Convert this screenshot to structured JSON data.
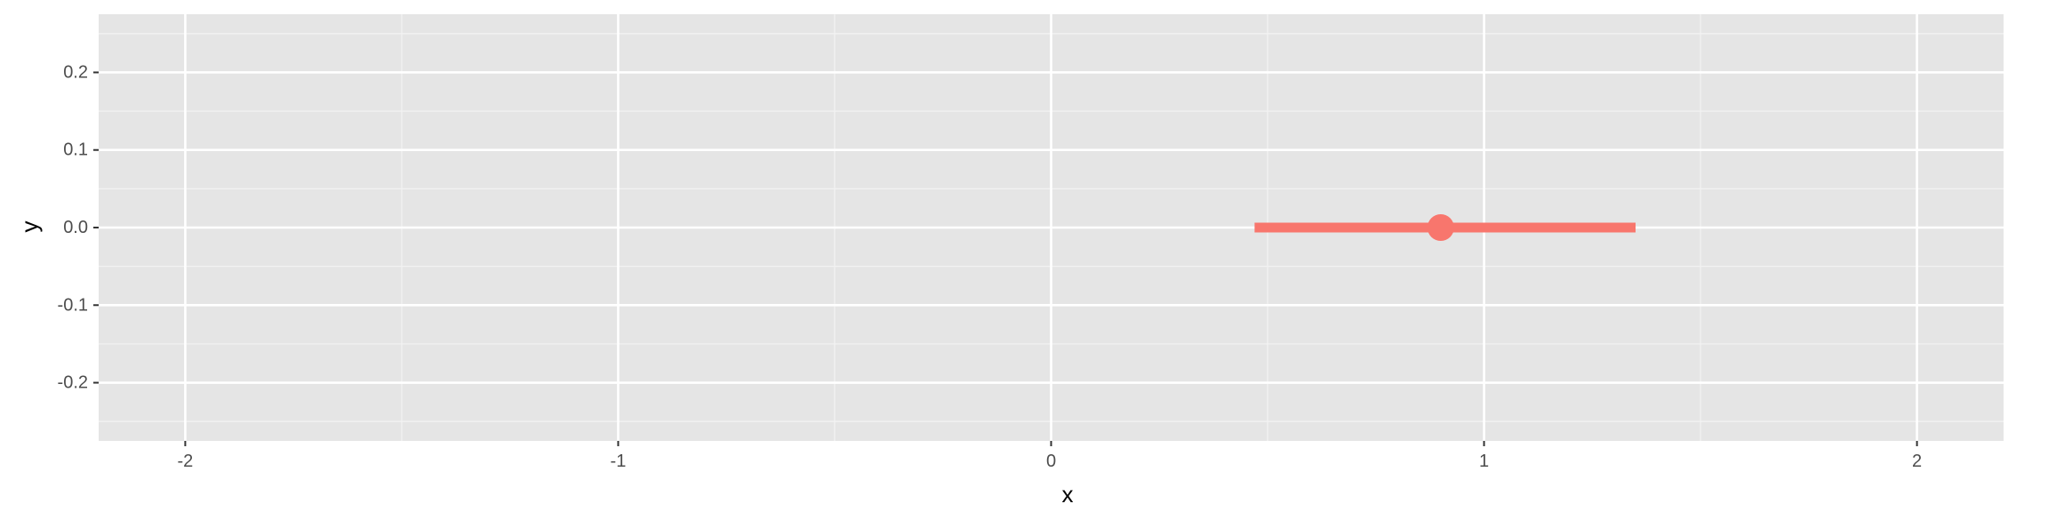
{
  "chart_data": {
    "type": "pointrange",
    "xlabel": "x",
    "ylabel": "y",
    "xlim": [
      -2.2,
      2.2
    ],
    "ylim": [
      -0.275,
      0.275
    ],
    "x_ticks": [
      -2,
      -1,
      0,
      1,
      2
    ],
    "x_tick_labels": [
      "-2",
      "-1",
      "0",
      "1",
      "2"
    ],
    "y_ticks": [
      -0.2,
      -0.1,
      0.0,
      0.1,
      0.2
    ],
    "y_tick_labels": [
      "-0.2",
      "-0.1",
      "0.0",
      "0.1",
      "0.2"
    ],
    "grid": true,
    "background_color": "#E5E5E5",
    "point": {
      "x": 0.9,
      "y": 0.0,
      "xmin": 0.47,
      "xmax": 1.35,
      "color": "#F8766D"
    }
  }
}
